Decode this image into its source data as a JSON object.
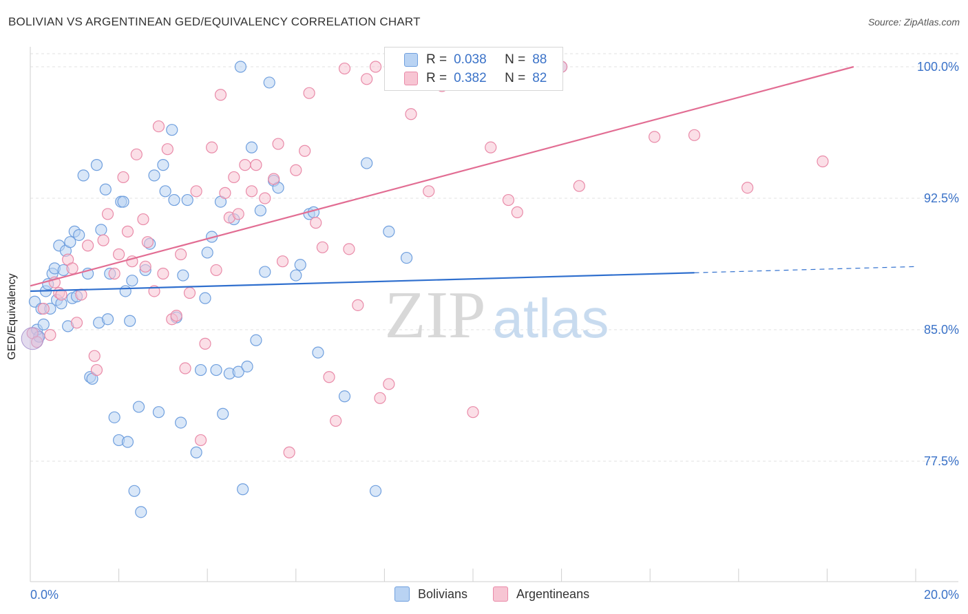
{
  "title": "BOLIVIAN VS ARGENTINEAN GED/EQUIVALENCY CORRELATION CHART",
  "source": "Source: ZipAtlas.com",
  "watermark": {
    "zip": "ZIP",
    "atlas": "atlas"
  },
  "legend": {
    "rows": [
      {
        "r_label": "R =",
        "r_value": "0.038",
        "n_label": "N =",
        "n_value": "88",
        "fill": "#b9d3f3",
        "stroke": "#6f9fde"
      },
      {
        "r_label": "R =",
        "r_value": "0.382",
        "n_label": "N =",
        "n_value": "82",
        "fill": "#f7c5d3",
        "stroke": "#e98aa8"
      }
    ]
  },
  "bottom_legend": [
    {
      "label": "Bolivians",
      "fill": "#b9d3f3",
      "stroke": "#6f9fde"
    },
    {
      "label": "Argentineans",
      "fill": "#f7c5d3",
      "stroke": "#e98aa8"
    }
  ],
  "chart_data": {
    "type": "scatter",
    "title": "BOLIVIAN VS ARGENTINEAN GED/EQUIVALENCY CORRELATION CHART",
    "xlabel": "",
    "ylabel": "GED/Equivalency",
    "xlim": [
      0,
      20
    ],
    "ylim": [
      71.5,
      100.5
    ],
    "x_tick_labels": [
      {
        "value": 0,
        "label": "0.0%"
      },
      {
        "value": 20,
        "label": "20.0%"
      }
    ],
    "y_tick_labels": [
      {
        "value": 77.5,
        "label": "77.5%"
      },
      {
        "value": 85.0,
        "label": "85.0%"
      },
      {
        "value": 92.5,
        "label": "92.5%"
      },
      {
        "value": 100.0,
        "label": "100.0%"
      }
    ],
    "grid": true,
    "legend_position": "top-center",
    "series": [
      {
        "name": "Bolivians",
        "color": "#6f9fde",
        "fill": "#b9d3f3",
        "trend": {
          "x_start": 0,
          "y_start": 87.2,
          "x_solid_end": 15.0,
          "x_end": 20,
          "y_end": 88.6,
          "line_color": "#2f6fce"
        },
        "x": [
          0.1,
          0.15,
          0.2,
          0.25,
          0.3,
          0.35,
          0.4,
          0.45,
          0.5,
          0.55,
          0.6,
          0.65,
          0.7,
          0.75,
          0.8,
          0.85,
          0.9,
          0.95,
          1.0,
          1.05,
          1.1,
          1.2,
          1.3,
          1.35,
          1.4,
          1.5,
          1.55,
          1.6,
          1.7,
          1.75,
          1.8,
          1.9,
          2.0,
          2.05,
          2.1,
          2.15,
          2.2,
          2.25,
          2.3,
          2.35,
          2.45,
          2.5,
          2.6,
          2.7,
          2.8,
          2.9,
          3.0,
          3.05,
          3.2,
          3.25,
          3.3,
          3.4,
          3.45,
          3.55,
          3.75,
          3.85,
          3.95,
          4.0,
          4.1,
          4.2,
          4.3,
          4.35,
          4.5,
          4.6,
          4.7,
          4.75,
          4.8,
          4.9,
          5.0,
          5.1,
          5.2,
          5.3,
          5.4,
          5.5,
          5.6,
          6.0,
          6.1,
          6.3,
          6.4,
          6.5,
          7.1,
          7.6,
          7.8,
          8.1,
          8.5,
          8.9,
          11.9,
          12.0
        ],
        "y": [
          86.6,
          85.0,
          84.6,
          86.2,
          85.3,
          87.2,
          87.6,
          86.2,
          88.2,
          88.5,
          86.7,
          89.8,
          86.5,
          88.4,
          89.5,
          85.2,
          90.0,
          86.8,
          90.6,
          86.9,
          90.4,
          93.8,
          88.2,
          82.3,
          82.2,
          94.4,
          85.4,
          90.7,
          93.0,
          85.6,
          88.2,
          80.0,
          78.7,
          92.3,
          92.3,
          87.2,
          78.6,
          85.5,
          87.8,
          75.8,
          80.6,
          74.6,
          88.4,
          89.9,
          93.8,
          80.3,
          94.4,
          92.9,
          96.4,
          92.4,
          85.7,
          79.7,
          88.1,
          92.4,
          78.0,
          82.7,
          86.8,
          89.4,
          90.3,
          82.7,
          92.3,
          80.2,
          82.5,
          91.3,
          82.6,
          100.0,
          75.9,
          82.9,
          95.4,
          84.4,
          91.8,
          88.3,
          99.1,
          93.5,
          93.1,
          88.1,
          88.7,
          91.6,
          91.7,
          83.7,
          81.2,
          94.5,
          75.8,
          90.6,
          89.1,
          100.0,
          100.0,
          100.0
        ]
      },
      {
        "name": "Argentineans",
        "color": "#e98aa8",
        "fill": "#f7c5d3",
        "trend": {
          "x_start": 0,
          "y_start": 87.5,
          "x_end": 18.6,
          "y_end": 100.0,
          "line_color": "#e26d93"
        },
        "x": [
          0.05,
          0.15,
          0.3,
          0.45,
          0.55,
          0.65,
          0.7,
          0.85,
          0.95,
          1.05,
          1.15,
          1.3,
          1.45,
          1.5,
          1.65,
          1.75,
          1.9,
          2.0,
          2.1,
          2.2,
          2.3,
          2.4,
          2.55,
          2.6,
          2.65,
          2.8,
          2.9,
          3.0,
          3.1,
          3.2,
          3.3,
          3.4,
          3.5,
          3.6,
          3.75,
          3.85,
          3.95,
          4.1,
          4.2,
          4.3,
          4.4,
          4.5,
          4.6,
          4.7,
          4.85,
          5.0,
          5.1,
          5.3,
          5.5,
          5.6,
          5.7,
          5.85,
          6.0,
          6.2,
          6.3,
          6.45,
          6.6,
          6.75,
          6.9,
          7.1,
          7.2,
          7.4,
          7.6,
          7.8,
          7.9,
          8.1,
          8.4,
          8.6,
          9.0,
          9.3,
          9.6,
          10.0,
          10.4,
          10.8,
          11.0,
          11.5,
          12.0,
          12.4,
          14.1,
          15.0,
          16.2,
          17.9
        ],
        "y": [
          84.8,
          84.3,
          86.2,
          84.7,
          87.7,
          87.1,
          87.0,
          89.0,
          88.5,
          85.4,
          87.0,
          89.8,
          83.5,
          82.7,
          90.1,
          91.6,
          88.2,
          89.3,
          93.7,
          90.6,
          88.9,
          95.0,
          91.3,
          88.6,
          90.0,
          87.2,
          96.6,
          88.2,
          95.3,
          85.6,
          85.8,
          89.3,
          82.8,
          87.1,
          92.9,
          78.7,
          84.2,
          95.4,
          88.4,
          98.4,
          92.8,
          91.4,
          93.7,
          91.6,
          94.4,
          92.9,
          94.4,
          92.5,
          93.6,
          95.6,
          88.9,
          78.0,
          94.1,
          95.2,
          98.5,
          91.1,
          89.7,
          82.3,
          79.8,
          99.9,
          89.6,
          86.4,
          99.3,
          100.0,
          81.1,
          81.9,
          99.9,
          97.3,
          92.9,
          98.9,
          100.0,
          80.3,
          95.4,
          92.4,
          91.7,
          99.9,
          100.0,
          93.2,
          96.0,
          96.1,
          93.1,
          94.6
        ]
      }
    ]
  }
}
